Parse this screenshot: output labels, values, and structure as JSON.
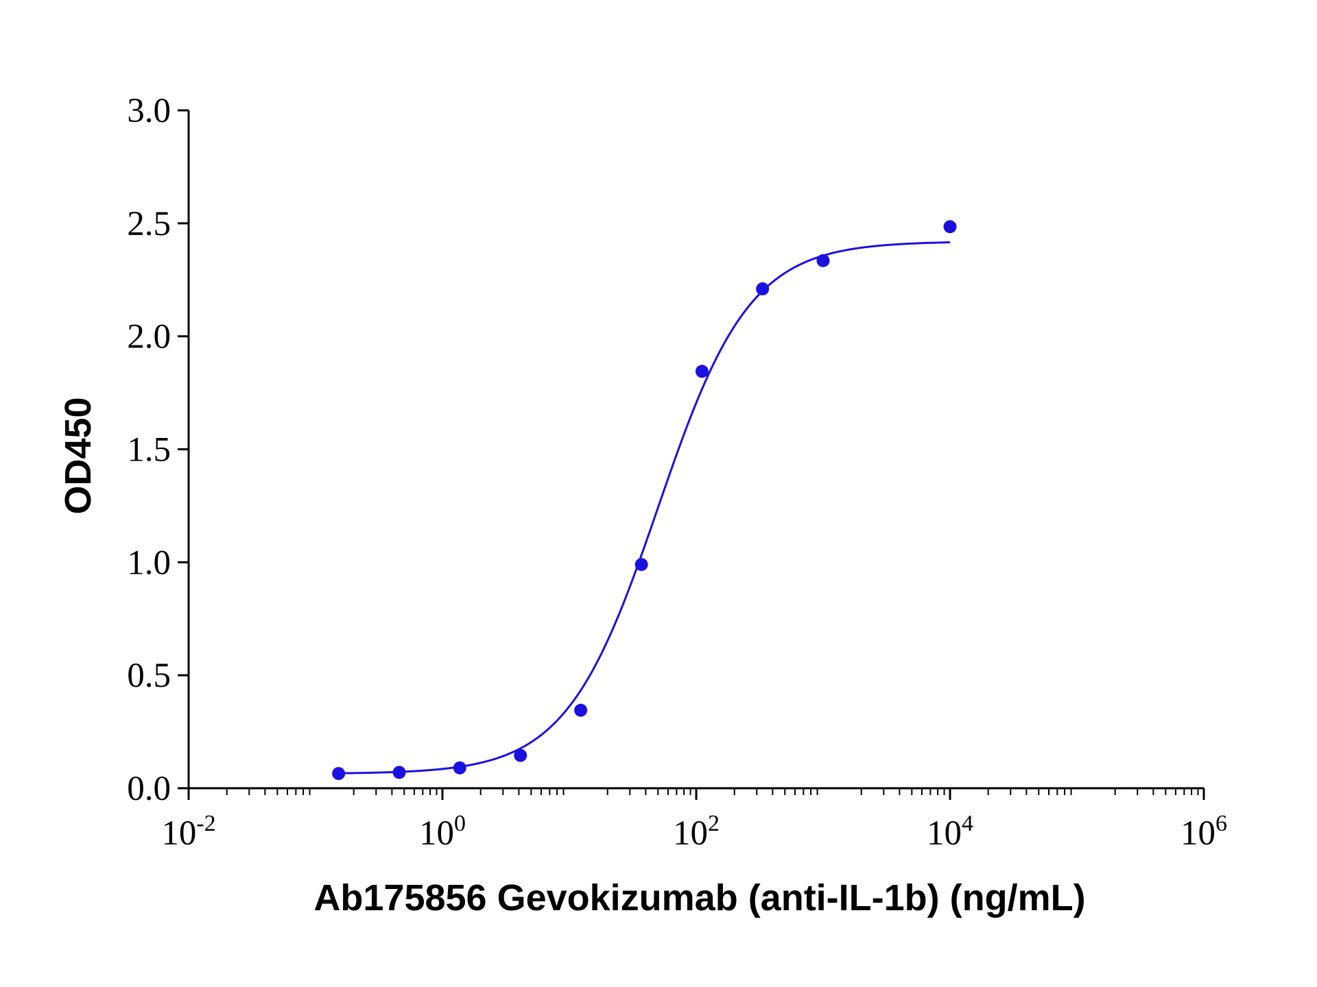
{
  "chart_data": {
    "type": "scatter",
    "title": "",
    "xlabel": "Ab175856 Gevokizumab (anti-IL-1b) (ng/mL)",
    "ylabel": "OD450",
    "x_scale": "log10",
    "xlim": [
      0.01,
      1000000
    ],
    "ylim": [
      0,
      3.0
    ],
    "x_ticks": [
      {
        "value": 0.01,
        "base": "10",
        "exp": "-2"
      },
      {
        "value": 1,
        "base": "10",
        "exp": "0"
      },
      {
        "value": 100,
        "base": "10",
        "exp": "2"
      },
      {
        "value": 10000,
        "base": "10",
        "exp": "4"
      },
      {
        "value": 1000000,
        "base": "10",
        "exp": "6"
      }
    ],
    "y_ticks": [
      {
        "value": 0.0,
        "label": "0.0"
      },
      {
        "value": 0.5,
        "label": "0.5"
      },
      {
        "value": 1.0,
        "label": "1.0"
      },
      {
        "value": 1.5,
        "label": "1.5"
      },
      {
        "value": 2.0,
        "label": "2.0"
      },
      {
        "value": 2.5,
        "label": "2.5"
      },
      {
        "value": 3.0,
        "label": "3.0"
      }
    ],
    "series": [
      {
        "color": "#1a10e0",
        "x": [
          0.152,
          0.457,
          1.37,
          4.12,
          12.3,
          37.0,
          111,
          333,
          1000,
          10000
        ],
        "y": [
          0.065,
          0.07,
          0.09,
          0.145,
          0.345,
          0.99,
          1.845,
          2.21,
          2.335,
          2.485
        ]
      }
    ],
    "fit_curve": {
      "model": "4PL",
      "bottom": 0.064,
      "top": 2.42,
      "ec50": 50,
      "hill": 1.2,
      "x_range": [
        0.152,
        10000
      ],
      "color": "#1a10e0"
    },
    "grid": false,
    "legend": "none"
  }
}
